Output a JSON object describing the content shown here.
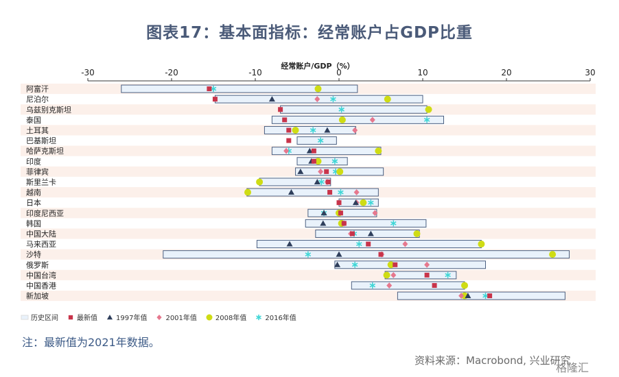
{
  "title": "图表17：基本面指标：经常账户占GDP比重",
  "note": "注：最新值为2021年数据。",
  "source": "资料来源：Macrobond, 兴业研究",
  "watermark": "格隆汇",
  "colors": {
    "band": "#fcf0ea",
    "range_fill": "#e9f2fb",
    "range_stroke": "#4a5f80",
    "latest": "#c8344a",
    "y1997": "#2f3f5c",
    "y2001": "#e6788e",
    "y2008": "#cfdc14",
    "y2016": "#3fd6d6"
  },
  "legend": [
    {
      "key": "range",
      "label": "历史区间"
    },
    {
      "key": "latest",
      "label": "最新值"
    },
    {
      "key": "y1997",
      "label": "1997年值"
    },
    {
      "key": "y2001",
      "label": "2001年值"
    },
    {
      "key": "y2008",
      "label": "2008年值"
    },
    {
      "key": "y2016",
      "label": "2016年值"
    }
  ],
  "chart_data": {
    "type": "scatter",
    "xlabel": "经常账户/GDP（%）",
    "xlim": [
      -30,
      30
    ],
    "xticks": [
      -30,
      -20,
      -10,
      0,
      10,
      20,
      30
    ],
    "categories": [
      "阿富汗",
      "尼泊尔",
      "乌兹别克斯坦",
      "泰国",
      "土耳其",
      "巴基斯坦",
      "哈萨克斯坦",
      "印度",
      "菲律宾",
      "斯里兰卡",
      "越南",
      "日本",
      "印度尼西亚",
      "韩国",
      "中国大陆",
      "马来西亚",
      "沙特",
      "俄罗斯",
      "中国台湾",
      "中国香港",
      "新加坡"
    ],
    "range": [
      [
        -26,
        2.2
      ],
      [
        -14.8,
        10
      ],
      [
        -7,
        10.5
      ],
      [
        -8,
        12.5
      ],
      [
        -8.9,
        2
      ],
      [
        -5,
        -0.3
      ],
      [
        -8,
        5
      ],
      [
        -5,
        1
      ],
      [
        -5.2,
        5.3
      ],
      [
        -9.5,
        -1
      ],
      [
        -11,
        4.7
      ],
      [
        0,
        4.7
      ],
      [
        -3.7,
        4.5
      ],
      [
        -4,
        10.4
      ],
      [
        -2.8,
        9.6
      ],
      [
        -9.8,
        17
      ],
      [
        -21,
        27.5
      ],
      [
        -0.5,
        17.5
      ],
      [
        5.5,
        14
      ],
      [
        1.5,
        15
      ],
      [
        7,
        27
      ]
    ],
    "series": [
      {
        "name": "最新值",
        "marker": "square",
        "values": [
          -15.5,
          -14.8,
          -7,
          -6.5,
          -6,
          -6,
          -3,
          -3,
          -1.5,
          -1.3,
          -1.1,
          0,
          0.2,
          0.6,
          1.6,
          3.5,
          5,
          6.7,
          10.5,
          11.4,
          18
        ]
      },
      {
        "name": "1997年值",
        "marker": "triangle",
        "values": [
          null,
          -8,
          null,
          null,
          -1.4,
          null,
          -3.5,
          -3.3,
          -4.6,
          -2.6,
          -5.7,
          2,
          -1.8,
          -1.9,
          3.8,
          -5.9,
          0,
          -0.2,
          null,
          null,
          15.4
        ]
      },
      {
        "name": "2001年值",
        "marker": "diamond",
        "values": [
          null,
          -2.6,
          null,
          4,
          1.9,
          null,
          -6.3,
          null,
          -2.2,
          -1.4,
          2.1,
          2.1,
          4.3,
          0.6,
          1.4,
          7.9,
          5.1,
          10.5,
          6.5,
          6,
          14.6
        ]
      },
      {
        "name": "2008年值",
        "marker": "circle",
        "values": [
          -2.5,
          5.8,
          10.7,
          0.4,
          -5.2,
          null,
          4.7,
          -2.5,
          0.1,
          -9.5,
          -10.9,
          2.9,
          0,
          0.3,
          9.3,
          17,
          25.5,
          6.2,
          5.7,
          15,
          15
        ]
      },
      {
        "name": "2016年值",
        "marker": "asterisk",
        "values": [
          -15,
          -0.7,
          0.3,
          10.5,
          -3.1,
          -2.2,
          -6,
          -0.5,
          -0.4,
          -2.1,
          0.2,
          3.8,
          -1.8,
          6.5,
          1.8,
          2.4,
          -3.7,
          1.9,
          13,
          4,
          17.5
        ]
      }
    ]
  }
}
